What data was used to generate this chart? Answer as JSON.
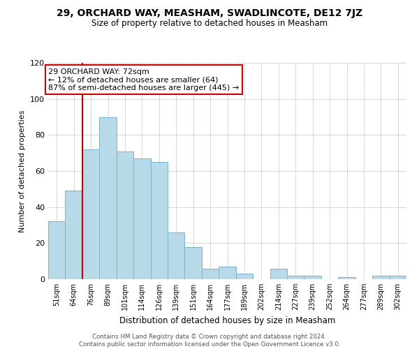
{
  "title": "29, ORCHARD WAY, MEASHAM, SWADLINCOTE, DE12 7JZ",
  "subtitle": "Size of property relative to detached houses in Measham",
  "xlabel": "Distribution of detached houses by size in Measham",
  "ylabel": "Number of detached properties",
  "bar_labels": [
    "51sqm",
    "64sqm",
    "76sqm",
    "89sqm",
    "101sqm",
    "114sqm",
    "126sqm",
    "139sqm",
    "151sqm",
    "164sqm",
    "177sqm",
    "189sqm",
    "202sqm",
    "214sqm",
    "227sqm",
    "239sqm",
    "252sqm",
    "264sqm",
    "277sqm",
    "289sqm",
    "302sqm"
  ],
  "bar_values": [
    32,
    49,
    72,
    90,
    71,
    67,
    65,
    26,
    18,
    6,
    7,
    3,
    0,
    6,
    2,
    2,
    0,
    1,
    0,
    2,
    2
  ],
  "bar_color": "#b8d9e8",
  "bar_edge_color": "#7ab3cc",
  "marker_label": "29 ORCHARD WAY: 72sqm",
  "marker_smaller": "← 12% of detached houses are smaller (64)",
  "marker_larger": "87% of semi-detached houses are larger (445) →",
  "vline_color": "#cc0000",
  "annotation_box_edge": "#cc0000",
  "ylim": [
    0,
    120
  ],
  "yticks": [
    0,
    20,
    40,
    60,
    80,
    100,
    120
  ],
  "footer_line1": "Contains HM Land Registry data © Crown copyright and database right 2024.",
  "footer_line2": "Contains public sector information licensed under the Open Government Licence v3.0.",
  "bg_color": "#ffffff",
  "grid_color": "#d0d0d0"
}
